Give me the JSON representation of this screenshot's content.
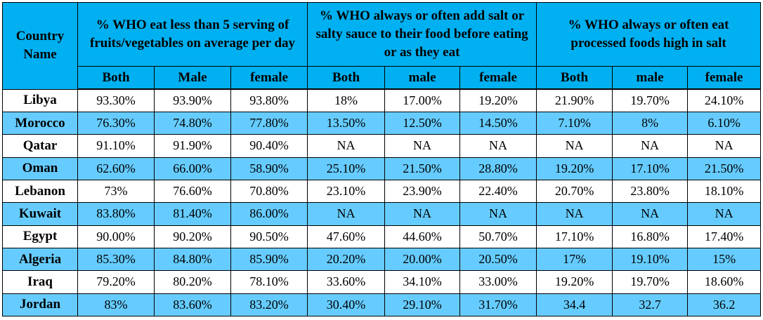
{
  "table": {
    "country_header": "Country Name",
    "groups": [
      "% WHO eat less than 5 serving of fruits/vegetables on average per day",
      "% WHO always or often add salt or salty sauce to their food before eating or as they eat",
      "% WHO always or often eat processed foods high in salt"
    ],
    "subheaders": [
      "Both",
      "Male",
      "female",
      "Both",
      "male",
      "female",
      "Both",
      "male",
      "female"
    ],
    "rows": [
      {
        "country": "Libya",
        "values": [
          "93.30%",
          "93.90%",
          "93.80%",
          "18%",
          "17.00%",
          "19.20%",
          "21.90%",
          "19.70%",
          "24.10%"
        ]
      },
      {
        "country": "Morocco",
        "values": [
          "76.30%",
          "74.80%",
          "77.80%",
          "13.50%",
          "12.50%",
          "14.50%",
          "7.10%",
          "8%",
          "6.10%"
        ]
      },
      {
        "country": "Qatar",
        "values": [
          "91.10%",
          "91.90%",
          "90.40%",
          "NA",
          "NA",
          "NA",
          "NA",
          "NA",
          "NA"
        ]
      },
      {
        "country": "Oman",
        "values": [
          "62.60%",
          "66.00%",
          "58.90%",
          "25.10%",
          "21.50%",
          "28.80%",
          "19.20%",
          "17.10%",
          "21.50%"
        ]
      },
      {
        "country": "Lebanon",
        "values": [
          "73%",
          "76.60%",
          "70.80%",
          "23.10%",
          "23.90%",
          "22.40%",
          "20.70%",
          "23.80%",
          "18.10%"
        ]
      },
      {
        "country": "Kuwait",
        "values": [
          "83.80%",
          "81.40%",
          "86.00%",
          "NA",
          "NA",
          "NA",
          "NA",
          "NA",
          "NA"
        ]
      },
      {
        "country": "Egypt",
        "values": [
          "90.00%",
          "90.20%",
          "90.50%",
          "47.60%",
          "44.60%",
          "50.70%",
          "17.10%",
          "16.80%",
          "17.40%"
        ]
      },
      {
        "country": "Algeria",
        "values": [
          "85.30%",
          "84.80%",
          "85.90%",
          "20.20%",
          "20.00%",
          "20.50%",
          "17%",
          "19.10%",
          "15%"
        ]
      },
      {
        "country": "Iraq",
        "values": [
          "79.20%",
          "80.20%",
          "78.10%",
          "33.60%",
          "34.10%",
          "33.00%",
          "19.20%",
          "19.70%",
          "18.60%"
        ]
      },
      {
        "country": "Jordan",
        "values": [
          "83%",
          "83.60%",
          "83.20%",
          "30.40%",
          "29.10%",
          "31.70%",
          "34.4",
          "32.7",
          "36.2"
        ]
      }
    ]
  },
  "colors": {
    "header_bg": "#00b0f0",
    "stripe_bg": "#66ccff",
    "row_bg": "#ffffff",
    "border": "#000000"
  }
}
